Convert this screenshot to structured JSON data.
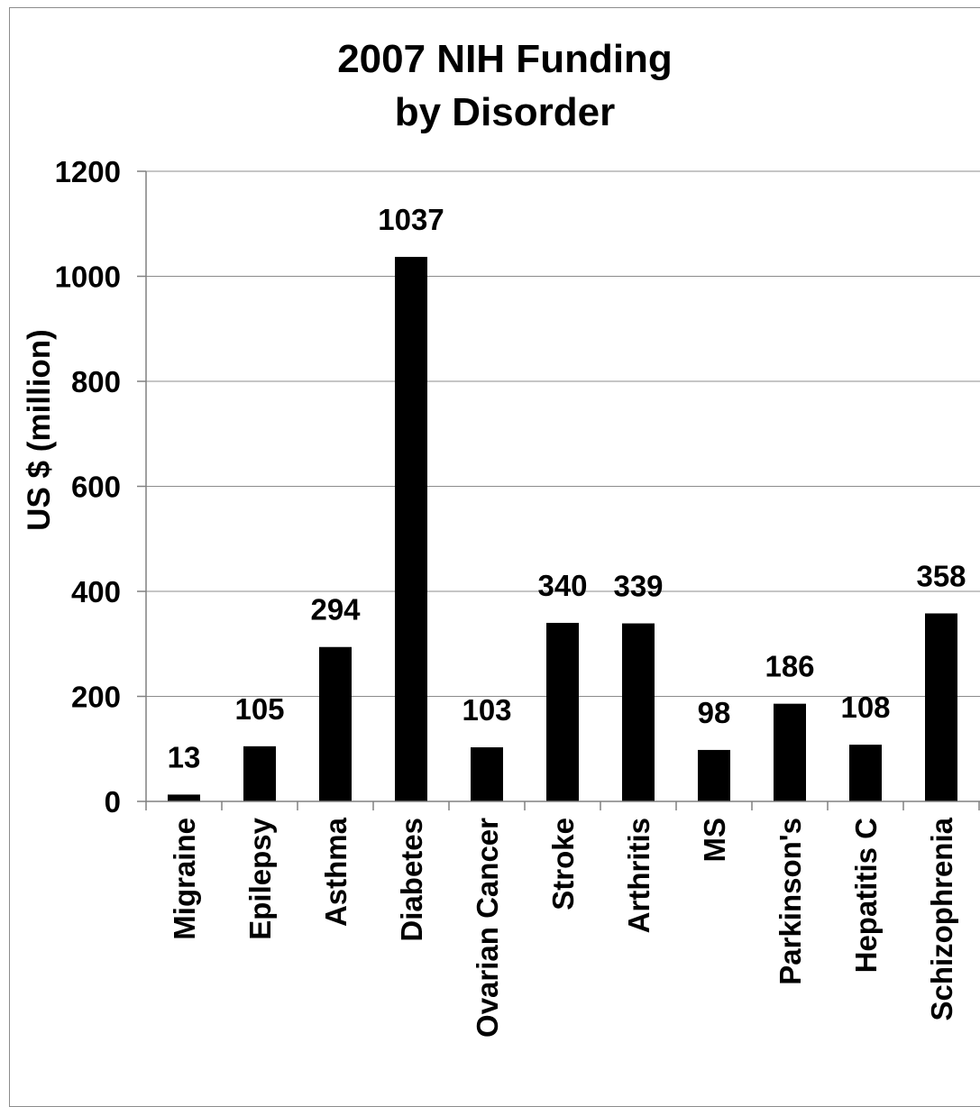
{
  "chart_data": {
    "type": "bar",
    "title_lines": [
      "2007 NIH Funding",
      "by Disorder"
    ],
    "ylabel": "US $ (million)",
    "xlabel": "",
    "ylim": [
      0,
      1200
    ],
    "yticks": [
      0,
      200,
      400,
      600,
      800,
      1000,
      1200
    ],
    "grid": true,
    "legend": "none",
    "bar_color": "#000000",
    "grid_color": "#8c8c8c",
    "categories": [
      "Migraine",
      "Epilepsy",
      "Asthma",
      "Diabetes",
      "Ovarian Cancer",
      "Stroke",
      "Arthritis",
      "MS",
      "Parkinson's",
      "Hepatitis C",
      "Schizophrenia"
    ],
    "values": [
      13,
      105,
      294,
      1037,
      103,
      340,
      339,
      98,
      186,
      108,
      358
    ],
    "value_labels": [
      "13",
      "105",
      "294",
      "1037",
      "103",
      "340",
      "339",
      "98",
      "186",
      "108",
      "358"
    ]
  }
}
